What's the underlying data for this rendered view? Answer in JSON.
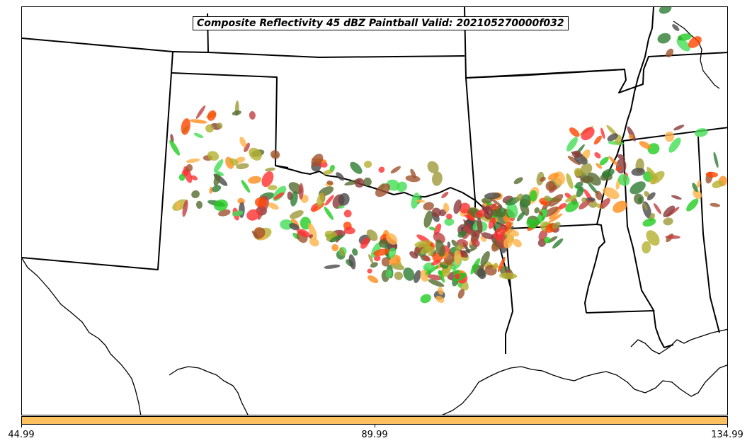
{
  "map": {
    "title": "Composite Reflectivity 45 dBZ Paintball Valid: 202105270000f032",
    "projection": "Lambert Conformal",
    "region": "South-Central United States",
    "field": "Composite Reflectivity",
    "threshold_dbz": 45,
    "plot_type": "paintball",
    "boundary_color": "#000000",
    "colorbar": {
      "color": "#ffc060",
      "ticks": [
        "44.99",
        "89.99",
        "134.99"
      ]
    },
    "member_palette": [
      "#8b3a3a",
      "#ff3030",
      "#ff8c1a",
      "#ffb347",
      "#22cc22",
      "#44dd55",
      "#2e7d32",
      "#556b2f",
      "#9e9a3a",
      "#b5b030",
      "#4a4a4a",
      "#ff4500",
      "#a0522d",
      "#c04040"
    ]
  }
}
